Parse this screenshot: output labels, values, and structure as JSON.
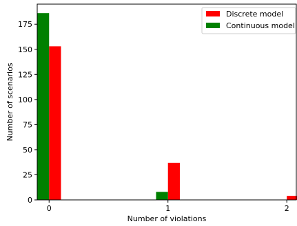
{
  "chart_data": {
    "type": "bar",
    "xlabel": "Number of violations",
    "ylabel": "Number of scenarios",
    "x_ticks": [
      "0",
      "1",
      "2"
    ],
    "y_ticks": [
      "0",
      "25",
      "50",
      "75",
      "100",
      "125",
      "150",
      "175"
    ],
    "xlim": [
      -0.1,
      2.08
    ],
    "ylim": [
      0,
      195
    ],
    "grid": false,
    "legend_position": "top-right",
    "series": [
      {
        "name": "Discrete model",
        "color": "#ff0000",
        "bars": [
          {
            "x": 0,
            "value": 153
          },
          {
            "x": 1,
            "value": 37
          },
          {
            "x": 2,
            "value": 4
          }
        ]
      },
      {
        "name": "Continuous model",
        "color": "#008000",
        "bars": [
          {
            "x": 0,
            "value": 186
          },
          {
            "x": 1,
            "value": 8
          },
          {
            "x": 2,
            "value": 0
          }
        ]
      }
    ]
  }
}
